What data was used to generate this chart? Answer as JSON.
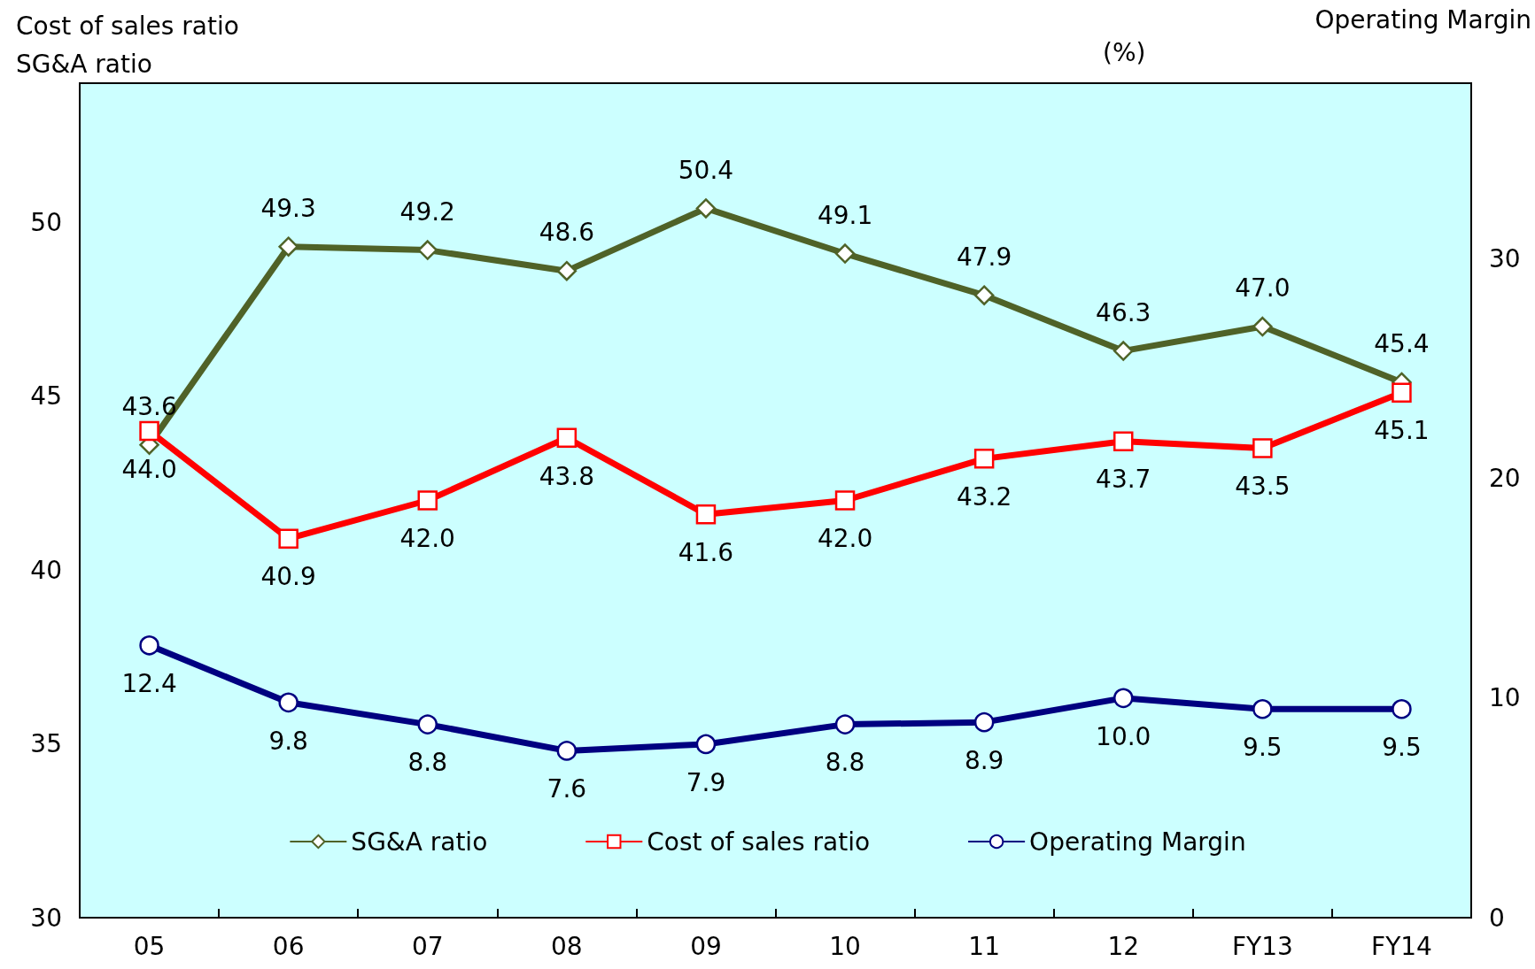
{
  "chart_data": {
    "type": "line",
    "ylabel": "Cost of sales ratio\nSG&A ratio",
    "y2label": "Operating Margin",
    "annotations": [
      "(%)"
    ],
    "categories": [
      "05",
      "06",
      "07",
      "08",
      "09",
      "10",
      "11",
      "12",
      "FY13",
      "FY14"
    ],
    "series": [
      {
        "name": "SG&A ratio",
        "color": "#4f6228",
        "marker": "diamond",
        "values": [
          43.6,
          49.3,
          49.2,
          48.6,
          50.4,
          49.1,
          47.9,
          46.3,
          47.0,
          45.4
        ],
        "value_labels": [
          "43.6",
          "49.3",
          "49.2",
          "48.6",
          "50.4",
          "49.1",
          "47.9",
          "46.3",
          "47.0",
          "45.4"
        ]
      },
      {
        "name": "Cost of sales ratio",
        "color": "#ff0000",
        "marker": "square",
        "values": [
          44.0,
          40.9,
          42.0,
          43.8,
          41.6,
          42.0,
          43.2,
          43.7,
          43.5,
          45.1
        ],
        "value_labels": [
          "44.0",
          "40.9",
          "42.0",
          "43.8",
          "41.6",
          "42.0",
          "43.2",
          "43.7",
          "43.5",
          "45.1"
        ]
      },
      {
        "name": "Operating Margin",
        "color": "#000080",
        "marker": "circle",
        "axis": "y2",
        "values": [
          12.4,
          9.8,
          8.8,
          7.6,
          7.9,
          8.8,
          8.9,
          10.0,
          9.5,
          9.5
        ],
        "value_labels": [
          "12.4",
          "9.8",
          "8.8",
          "7.6",
          "7.9",
          "8.8",
          "8.9",
          "10.0",
          "9.5",
          "9.5"
        ]
      }
    ],
    "ylim": [
      30,
      54
    ],
    "yticks": [
      30,
      35,
      40,
      45,
      50
    ],
    "y2lim": [
      0,
      38
    ],
    "y2ticks": [
      0,
      10,
      20,
      30
    ],
    "legend": "bottom",
    "grid": false,
    "line_style": "solid"
  }
}
